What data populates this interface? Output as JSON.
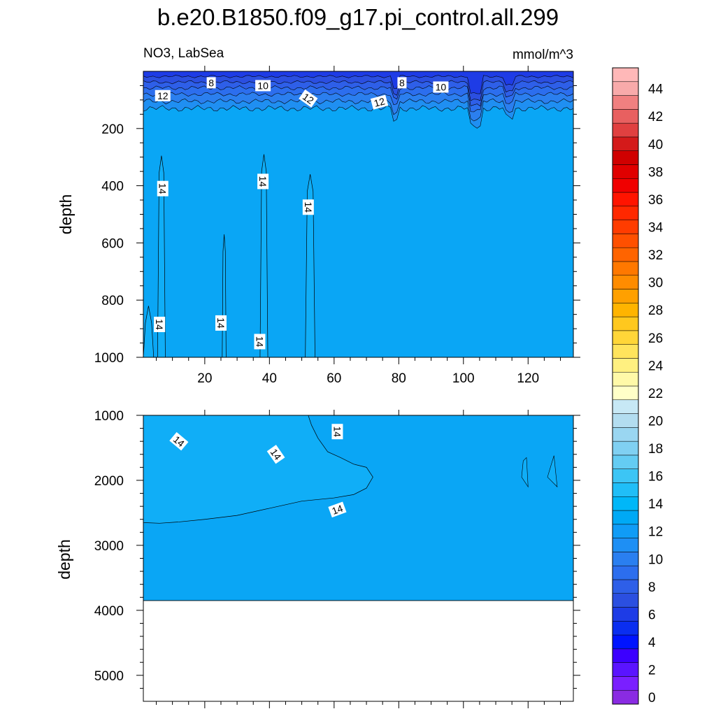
{
  "title": "b.e20.B1850.f09_g17.pi_control.all.299",
  "subtitle_left": "NO3, LabSea",
  "subtitle_right": "mmol/m^3",
  "chart_data": [
    {
      "type": "heatmap",
      "panel": "upper",
      "variable": "NO3",
      "region": "LabSea",
      "units": "mmol/m^3",
      "ylabel": "depth",
      "xlabel": "",
      "xlim": [
        1,
        134
      ],
      "ylim": [
        1000,
        0
      ],
      "x_ticks": [
        20,
        40,
        60,
        80,
        100,
        120
      ],
      "y_ticks": [
        200,
        400,
        600,
        800,
        1000
      ],
      "contour_labels": [
        {
          "text": "8",
          "x": 22,
          "y": 40
        },
        {
          "text": "10",
          "x": 38,
          "y": 50
        },
        {
          "text": "12",
          "x": 7,
          "y": 85
        },
        {
          "text": "12",
          "x": 52,
          "y": 95
        },
        {
          "text": "12",
          "x": 74,
          "y": 108
        },
        {
          "text": "8",
          "x": 81,
          "y": 40
        },
        {
          "text": "10",
          "x": 93,
          "y": 55
        },
        {
          "text": "14",
          "x": 7,
          "y": 410
        },
        {
          "text": "14",
          "x": 38,
          "y": 385
        },
        {
          "text": "14",
          "x": 52,
          "y": 475
        },
        {
          "text": "14",
          "x": 6,
          "y": 885
        },
        {
          "text": "14",
          "x": 25,
          "y": 880
        },
        {
          "text": "14",
          "x": 37,
          "y": 945
        }
      ],
      "summary": "Surface NO3 6-12 mmol/m^3 in upper ~130 m; 12-14 below; narrow 14+ plumes"
    },
    {
      "type": "heatmap",
      "panel": "lower",
      "ylabel": "depth",
      "xlabel": "",
      "xlim": [
        1,
        134
      ],
      "ylim": [
        5400,
        1000
      ],
      "y_ticks": [
        1000,
        2000,
        3000,
        4000,
        5000
      ],
      "seafloor_depth": 3850,
      "contour_labels": [
        {
          "text": "14",
          "x": 12,
          "y": 1400
        },
        {
          "text": "14",
          "x": 42,
          "y": 1600
        },
        {
          "text": "14",
          "x": 61,
          "y": 1250
        },
        {
          "text": "14",
          "x": 61,
          "y": 2450
        }
      ],
      "summary": "14-16 mmol/m^3 layer from 1000 to ~2600 m (west of x~70); 12-14 below to seafloor at ~3850 m"
    },
    {
      "type": "colorbar",
      "levels": [
        0,
        2,
        4,
        6,
        8,
        10,
        12,
        14,
        16,
        18,
        20,
        22,
        24,
        26,
        28,
        30,
        32,
        34,
        36,
        38,
        40,
        42,
        44
      ],
      "tick_labels": [
        "0",
        "2",
        "4",
        "6",
        "8",
        "10",
        "12",
        "14",
        "16",
        "18",
        "20",
        "22",
        "24",
        "26",
        "28",
        "30",
        "32",
        "34",
        "36",
        "38",
        "40",
        "42",
        "44"
      ],
      "colors": [
        "#8A2BE2",
        "#7A1FFF",
        "#5A14FF",
        "#3C00FF",
        "#0014FF",
        "#0A2EF0",
        "#1E3CE6",
        "#2B4FE0",
        "#2E5FE8",
        "#2C6EEE",
        "#2A7FF0",
        "#1E8FF4",
        "#109CF6",
        "#00A9F5",
        "#00B7F8",
        "#20BEF7",
        "#3CC5F5",
        "#64CCF3",
        "#80D0F2",
        "#9AD6F1",
        "#B3DDF0",
        "#C7E8F5",
        "#FFFFC8",
        "#FFF9A8",
        "#FFF080",
        "#FFE45C",
        "#FFD638",
        "#FFC81E",
        "#FFB400",
        "#FFA000",
        "#FF8C00",
        "#FF7800",
        "#FF6400",
        "#FF5000",
        "#FF3C00",
        "#FF2800",
        "#FF1400",
        "#F00000",
        "#E00000",
        "#D00000",
        "#D41A1A",
        "#E04040",
        "#E86060",
        "#F08080",
        "#F8AAAA",
        "#FFB8B8"
      ]
    }
  ]
}
